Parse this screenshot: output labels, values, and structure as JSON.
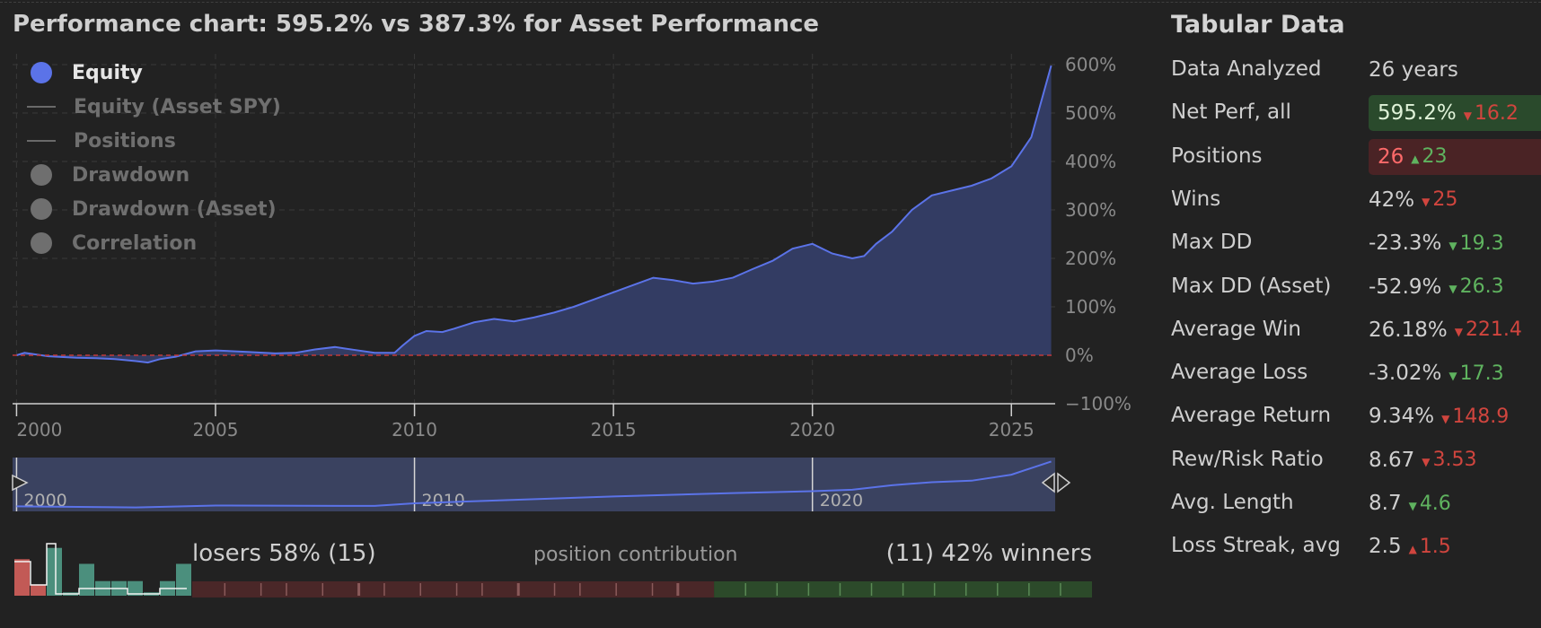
{
  "title": "Performance chart: 595.2% vs 387.3% for Asset Performance",
  "legend": [
    {
      "label": "Equity",
      "style": "dot",
      "active": true
    },
    {
      "label": "Equity (Asset SPY)",
      "style": "line",
      "active": false
    },
    {
      "label": "Positions",
      "style": "line",
      "active": false
    },
    {
      "label": "Drawdown",
      "style": "dot",
      "active": false
    },
    {
      "label": "Drawdown (Asset)",
      "style": "dot",
      "active": false
    },
    {
      "label": "Correlation",
      "style": "dot",
      "active": false
    }
  ],
  "colors": {
    "equity": "#5b73e8",
    "area": "#333c63",
    "zeroline": "#c0393b",
    "green": "#5fb35f",
    "red": "#d0453e",
    "hist_green": "#4b8f7d",
    "hist_red": "#c25a56"
  },
  "chart_data": {
    "type": "area",
    "title": "Performance chart: 595.2% vs 387.3% for Asset Performance",
    "xlabel": "",
    "ylabel": "",
    "xlim": [
      1999.9,
      2026.1
    ],
    "ylim": [
      -100,
      600
    ],
    "y_ticks": [
      "600%",
      "500%",
      "400%",
      "300%",
      "200%",
      "100%",
      "0%",
      "−100%"
    ],
    "x_ticks": [
      "2000",
      "2005",
      "2010",
      "2015",
      "2020",
      "2025"
    ],
    "navigator_ticks": [
      "2000",
      "2010",
      "2020"
    ],
    "grid": true,
    "legend_position": "top-left",
    "series": [
      {
        "name": "Equity",
        "points": [
          [
            2000.0,
            0
          ],
          [
            2000.2,
            5
          ],
          [
            2000.8,
            -2
          ],
          [
            2001.5,
            -5
          ],
          [
            2002.0,
            -6
          ],
          [
            2002.5,
            -8
          ],
          [
            2003.0,
            -12
          ],
          [
            2003.3,
            -15
          ],
          [
            2003.6,
            -8
          ],
          [
            2004.0,
            -3
          ],
          [
            2004.5,
            8
          ],
          [
            2005.0,
            10
          ],
          [
            2005.8,
            7
          ],
          [
            2006.5,
            4
          ],
          [
            2007.0,
            5
          ],
          [
            2007.5,
            12
          ],
          [
            2008.0,
            17
          ],
          [
            2008.5,
            11
          ],
          [
            2009.0,
            5
          ],
          [
            2009.5,
            5
          ],
          [
            2009.7,
            20
          ],
          [
            2010.0,
            40
          ],
          [
            2010.3,
            50
          ],
          [
            2010.7,
            48
          ],
          [
            2011.0,
            55
          ],
          [
            2011.5,
            68
          ],
          [
            2012.0,
            75
          ],
          [
            2012.5,
            70
          ],
          [
            2013.0,
            78
          ],
          [
            2013.5,
            88
          ],
          [
            2014.0,
            100
          ],
          [
            2014.5,
            115
          ],
          [
            2015.0,
            130
          ],
          [
            2015.5,
            145
          ],
          [
            2016.0,
            160
          ],
          [
            2016.5,
            155
          ],
          [
            2017.0,
            148
          ],
          [
            2017.5,
            152
          ],
          [
            2018.0,
            160
          ],
          [
            2018.5,
            178
          ],
          [
            2019.0,
            195
          ],
          [
            2019.5,
            220
          ],
          [
            2020.0,
            230
          ],
          [
            2020.5,
            210
          ],
          [
            2021.0,
            200
          ],
          [
            2021.3,
            205
          ],
          [
            2021.6,
            230
          ],
          [
            2022.0,
            255
          ],
          [
            2022.5,
            300
          ],
          [
            2023.0,
            330
          ],
          [
            2023.5,
            340
          ],
          [
            2024.0,
            350
          ],
          [
            2024.5,
            365
          ],
          [
            2025.0,
            390
          ],
          [
            2025.5,
            450
          ],
          [
            2026.0,
            598
          ]
        ]
      }
    ]
  },
  "navigator": {
    "points": [
      [
        2000,
        0
      ],
      [
        2003,
        -15
      ],
      [
        2005,
        10
      ],
      [
        2009,
        5
      ],
      [
        2010,
        40
      ],
      [
        2015,
        130
      ],
      [
        2018,
        175
      ],
      [
        2020,
        200
      ],
      [
        2021,
        220
      ],
      [
        2022,
        280
      ],
      [
        2023,
        320
      ],
      [
        2024,
        340
      ],
      [
        2025,
        420
      ],
      [
        2026,
        595
      ]
    ]
  },
  "table": {
    "title": "Tabular Data",
    "rows": [
      {
        "label": "Data Analyzed",
        "value": "26 years",
        "delta": "",
        "arrow": "",
        "color": "",
        "highlight": ""
      },
      {
        "label": "Net Perf, all",
        "value": "595.2%",
        "delta": "16.2",
        "arrow": "down",
        "color": "bad",
        "highlight": "green"
      },
      {
        "label": "Positions",
        "value": "26",
        "delta": "23",
        "arrow": "up",
        "color": "good",
        "highlight": "red"
      },
      {
        "label": "Wins",
        "value": "42%",
        "delta": "25",
        "arrow": "down",
        "color": "bad",
        "highlight": ""
      },
      {
        "label": "Max DD",
        "value": "-23.3%",
        "delta": "19.3",
        "arrow": "down",
        "color": "good",
        "highlight": ""
      },
      {
        "label": "Max DD (Asset)",
        "value": "-52.9%",
        "delta": "26.3",
        "arrow": "down",
        "color": "good",
        "highlight": ""
      },
      {
        "label": "Average Win",
        "value": "26.18%",
        "delta": "221.4",
        "arrow": "down",
        "color": "bad",
        "highlight": ""
      },
      {
        "label": "Average Loss",
        "value": "-3.02%",
        "delta": "17.3",
        "arrow": "down",
        "color": "good",
        "highlight": ""
      },
      {
        "label": "Average Return",
        "value": "9.34%",
        "delta": "148.9",
        "arrow": "down",
        "color": "bad",
        "highlight": ""
      },
      {
        "label": "Rew/Risk Ratio",
        "value": "8.67",
        "delta": "3.53",
        "arrow": "down",
        "color": "bad",
        "highlight": ""
      },
      {
        "label": "Avg. Length",
        "value": "8.7",
        "delta": "4.6",
        "arrow": "down",
        "color": "good",
        "highlight": ""
      },
      {
        "label": "Loss Streak, avg",
        "value": "2.5",
        "delta": "1.5",
        "arrow": "up",
        "color": "bad",
        "highlight": ""
      }
    ]
  },
  "contribution": {
    "left_label": "losers 58% (15)",
    "mid_label": "position contribution",
    "right_label": "(11) 42% winners",
    "losers_fraction": 0.58,
    "loser_ticks": 15,
    "winner_ticks": 11
  },
  "histogram": {
    "bars": [
      {
        "value": 0.55,
        "kind": "red"
      },
      {
        "value": 0.17,
        "kind": "red"
      },
      {
        "value": 0.72,
        "kind": "green"
      },
      {
        "value": 0.05,
        "kind": "green"
      },
      {
        "value": 0.48,
        "kind": "green"
      },
      {
        "value": 0.22,
        "kind": "green"
      },
      {
        "value": 0.22,
        "kind": "green"
      },
      {
        "value": 0.22,
        "kind": "green"
      },
      {
        "value": 0.05,
        "kind": "green"
      },
      {
        "value": 0.22,
        "kind": "green"
      },
      {
        "value": 0.48,
        "kind": "green"
      }
    ]
  }
}
